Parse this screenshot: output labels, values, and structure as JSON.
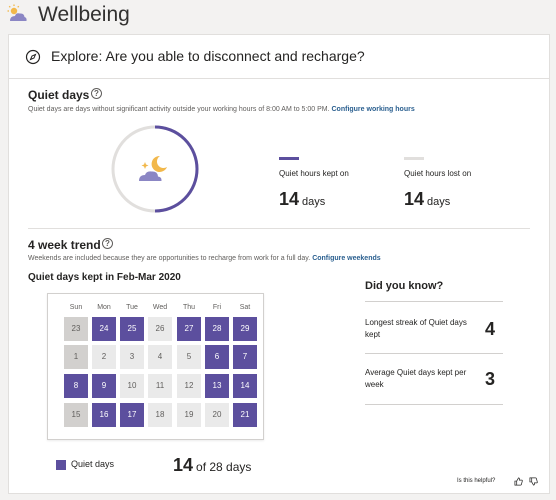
{
  "app": {
    "title": "Wellbeing"
  },
  "explore": {
    "prompt": "Explore: Are you able to disconnect and recharge?"
  },
  "quiet_days": {
    "title": "Quiet days",
    "description": "Quiet days are days without significant activity outside your working hours of 8:00 AM to 5:00 PM.",
    "link": "Configure working hours",
    "kept_fraction": 0.5,
    "kept": {
      "label": "Quiet hours kept on",
      "value": "14",
      "unit": "days",
      "color": "#5c4f9e"
    },
    "lost": {
      "label": "Quiet hours lost on",
      "value": "14",
      "unit": "days",
      "color": "#e1dfdd"
    }
  },
  "trend": {
    "title": "4 week trend",
    "description": "Weekends are included because they are opportunities to recharge from work for a full day.",
    "link": "Configure weekends",
    "calendar_title": "Quiet days kept in Feb-Mar 2020",
    "weekdays": [
      "Sun",
      "Mon",
      "Tue",
      "Wed",
      "Thu",
      "Fri",
      "Sat"
    ],
    "weeks": [
      [
        {
          "d": "23",
          "s": "weekend"
        },
        {
          "d": "24",
          "s": "quiet"
        },
        {
          "d": "25",
          "s": "quiet"
        },
        {
          "d": "26",
          "s": "lost"
        },
        {
          "d": "27",
          "s": "quiet"
        },
        {
          "d": "28",
          "s": "quiet"
        },
        {
          "d": "29",
          "s": "quiet"
        }
      ],
      [
        {
          "d": "1",
          "s": "weekend"
        },
        {
          "d": "2",
          "s": "lost"
        },
        {
          "d": "3",
          "s": "lost"
        },
        {
          "d": "4",
          "s": "lost"
        },
        {
          "d": "5",
          "s": "lost"
        },
        {
          "d": "6",
          "s": "quiet"
        },
        {
          "d": "7",
          "s": "quiet"
        }
      ],
      [
        {
          "d": "8",
          "s": "quiet"
        },
        {
          "d": "9",
          "s": "quiet"
        },
        {
          "d": "10",
          "s": "lost"
        },
        {
          "d": "11",
          "s": "lost"
        },
        {
          "d": "12",
          "s": "lost"
        },
        {
          "d": "13",
          "s": "quiet"
        },
        {
          "d": "14",
          "s": "quiet"
        }
      ],
      [
        {
          "d": "15",
          "s": "weekend"
        },
        {
          "d": "16",
          "s": "quiet"
        },
        {
          "d": "17",
          "s": "quiet"
        },
        {
          "d": "18",
          "s": "lost"
        },
        {
          "d": "19",
          "s": "lost"
        },
        {
          "d": "20",
          "s": "lost"
        },
        {
          "d": "21",
          "s": "quiet"
        }
      ]
    ],
    "legend": "Quiet days",
    "count_value": "14",
    "count_rest": "of 28 days"
  },
  "did_you_know": {
    "title": "Did you know?",
    "facts": [
      {
        "label": "Longest streak of Quiet days kept",
        "value": "4"
      },
      {
        "label": "Average Quiet days kept per week",
        "value": "3"
      }
    ]
  },
  "feedback": {
    "label": "Is this helpful?"
  },
  "colors": {
    "accent": "#5c4f9e",
    "muted": "#e1dfdd"
  }
}
